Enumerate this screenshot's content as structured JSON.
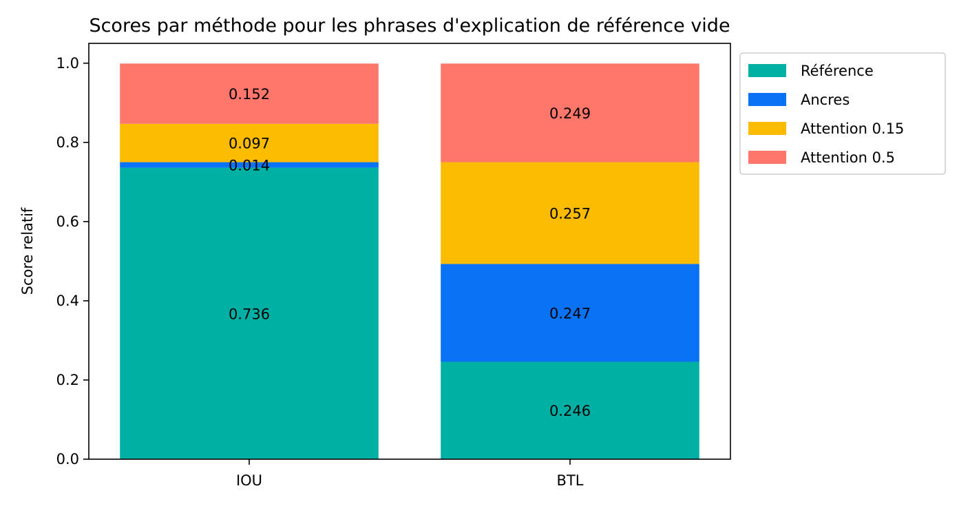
{
  "chart_data": {
    "type": "bar",
    "stacked": true,
    "title": "Scores par méthode pour les phrases d'explication de référence vide",
    "xlabel": "",
    "ylabel": "Score relatif",
    "ylim": [
      0,
      1.05
    ],
    "yticks": [
      "0.0",
      "0.2",
      "0.4",
      "0.6",
      "0.8",
      "1.0"
    ],
    "categories": [
      "IOU",
      "BTL"
    ],
    "series": [
      {
        "name": "Référence",
        "color": "#00b0a4",
        "values": [
          0.736,
          0.246
        ],
        "labels": [
          "0.736",
          "0.246"
        ]
      },
      {
        "name": "Ancres",
        "color": "#0a73f5",
        "values": [
          0.014,
          0.247
        ],
        "labels": [
          "0.014",
          "0.247"
        ]
      },
      {
        "name": "Attention 0.15",
        "color": "#fbbb00",
        "values": [
          0.097,
          0.257
        ],
        "labels": [
          "0.097",
          "0.257"
        ]
      },
      {
        "name": "Attention 0.5",
        "color": "#ff766a",
        "values": [
          0.152,
          0.249
        ],
        "labels": [
          "0.152",
          "0.249"
        ]
      }
    ],
    "grid": false,
    "legend_position": "outside-top-right"
  }
}
